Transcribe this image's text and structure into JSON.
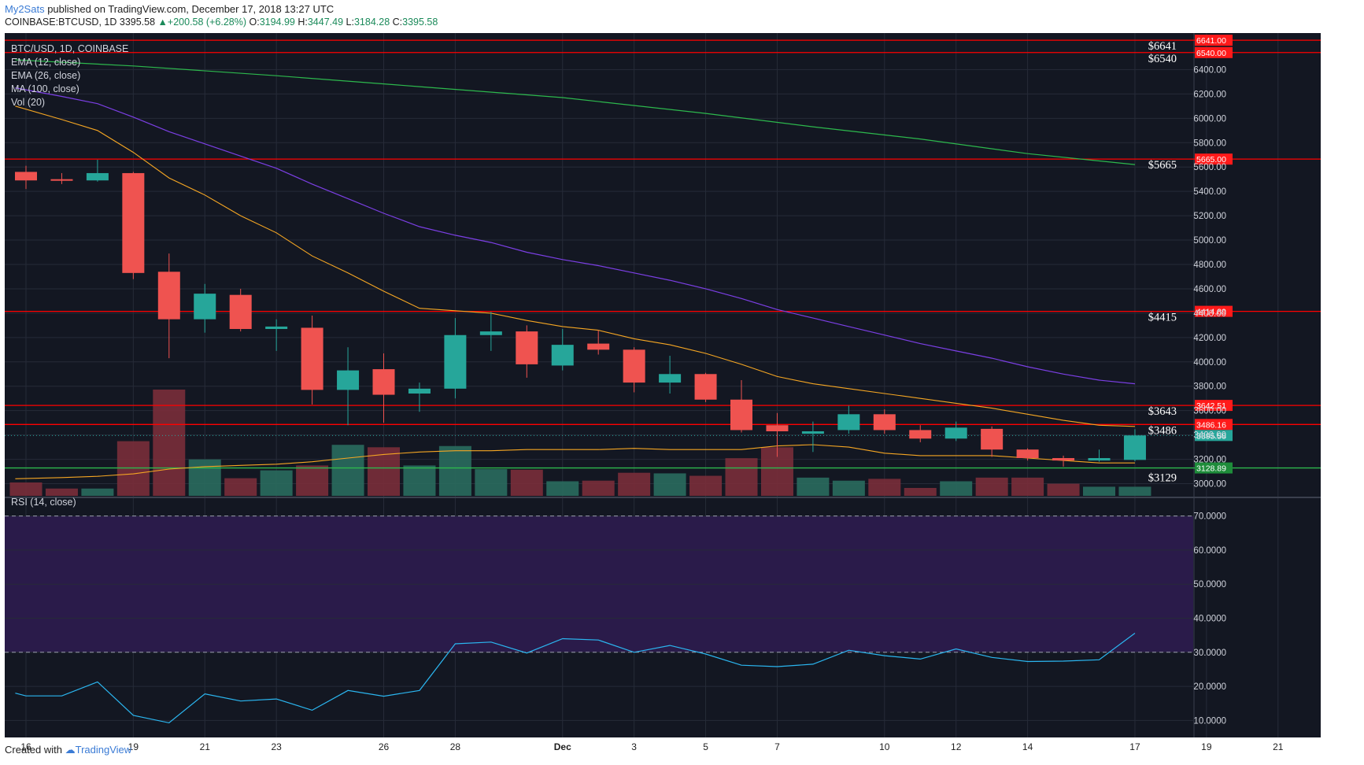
{
  "header": {
    "author": "My2Sats",
    "published": " published on TradingView.com, December 17, 2018 13:27 UTC",
    "symbol_line": "COINBASE:BTCUSD, 1D",
    "last": "3395.58",
    "change": "+200.58 (+6.28%)",
    "o_label": "O:",
    "o": "3194.99",
    "h_label": "H:",
    "h": "3447.49",
    "l_label": "L:",
    "l": "3184.28",
    "c_label": "C:",
    "c": "3395.58"
  },
  "footer": {
    "created": "Created with",
    "brand": "TradingView"
  },
  "colors": {
    "bg": "#131722",
    "up": "#26a69a",
    "down": "#ef5350",
    "ema12": "#f5a623",
    "ema26": "#f5a623",
    "ma100": "#7b3fe4",
    "green_ma": "#2db84d",
    "level": "#ff0000",
    "rsi": "#2bb6f0",
    "rsi_band": "#2a1b4a"
  },
  "chart_data": {
    "type": "candlestick",
    "symbol": "BTC/USD, 1D, COINBASE",
    "legend": [
      "EMA (12, close)",
      "EMA (26, close)",
      "MA (100, close)",
      "Vol (20)"
    ],
    "rsi_label": "RSI (14, close)",
    "ylim": [
      2900,
      6700
    ],
    "yticks": [
      "6400.00",
      "6200.00",
      "6000.00",
      "5800.00",
      "5600.00",
      "5400.00",
      "5200.00",
      "5000.00",
      "4800.00",
      "4600.00",
      "4400.00",
      "4200.00",
      "4000.00",
      "3800.00",
      "3600.00",
      "3400.00",
      "3200.00",
      "3000.00"
    ],
    "ytick_values": [
      6400,
      6200,
      6000,
      5800,
      5600,
      5400,
      5200,
      5000,
      4800,
      4600,
      4400,
      4200,
      4000,
      3800,
      3600,
      3400,
      3200,
      3000
    ],
    "x_ticks": [
      {
        "i": 0,
        "label": "16"
      },
      {
        "i": 3,
        "label": "19"
      },
      {
        "i": 5,
        "label": "21"
      },
      {
        "i": 7,
        "label": "23"
      },
      {
        "i": 10,
        "label": "26"
      },
      {
        "i": 12,
        "label": "28"
      },
      {
        "i": 15,
        "label": "Dec"
      },
      {
        "i": 17,
        "label": "3"
      },
      {
        "i": 19,
        "label": "5"
      },
      {
        "i": 21,
        "label": "7"
      },
      {
        "i": 24,
        "label": "10"
      },
      {
        "i": 26,
        "label": "12"
      },
      {
        "i": 28,
        "label": "14"
      },
      {
        "i": 31,
        "label": "17"
      },
      {
        "i": 33,
        "label": "19"
      },
      {
        "i": 35,
        "label": "21"
      }
    ],
    "candles": [
      {
        "o": 5560,
        "h": 5610,
        "l": 5420,
        "c": 5490
      },
      {
        "o": 5500,
        "h": 5550,
        "l": 5460,
        "c": 5490
      },
      {
        "o": 5490,
        "h": 5660,
        "l": 5480,
        "c": 5550
      },
      {
        "o": 5550,
        "h": 5560,
        "l": 4680,
        "c": 4730
      },
      {
        "o": 4740,
        "h": 4890,
        "l": 4030,
        "c": 4350
      },
      {
        "o": 4350,
        "h": 4640,
        "l": 4240,
        "c": 4560
      },
      {
        "o": 4550,
        "h": 4600,
        "l": 4250,
        "c": 4270
      },
      {
        "o": 4270,
        "h": 4350,
        "l": 4090,
        "c": 4290
      },
      {
        "o": 4280,
        "h": 4380,
        "l": 3650,
        "c": 3770
      },
      {
        "o": 3770,
        "h": 4120,
        "l": 3480,
        "c": 3930
      },
      {
        "o": 3940,
        "h": 4070,
        "l": 3500,
        "c": 3730
      },
      {
        "o": 3740,
        "h": 3830,
        "l": 3590,
        "c": 3780
      },
      {
        "o": 3780,
        "h": 4360,
        "l": 3700,
        "c": 4220
      },
      {
        "o": 4220,
        "h": 4410,
        "l": 4090,
        "c": 4250
      },
      {
        "o": 4250,
        "h": 4300,
        "l": 3870,
        "c": 3980
      },
      {
        "o": 3970,
        "h": 4270,
        "l": 3930,
        "c": 4140
      },
      {
        "o": 4150,
        "h": 4260,
        "l": 4060,
        "c": 4100
      },
      {
        "o": 4100,
        "h": 4120,
        "l": 3750,
        "c": 3830
      },
      {
        "o": 3830,
        "h": 4050,
        "l": 3740,
        "c": 3900
      },
      {
        "o": 3900,
        "h": 3910,
        "l": 3670,
        "c": 3690
      },
      {
        "o": 3690,
        "h": 3850,
        "l": 3420,
        "c": 3440
      },
      {
        "o": 3480,
        "h": 3580,
        "l": 3220,
        "c": 3430
      },
      {
        "o": 3410,
        "h": 3510,
        "l": 3260,
        "c": 3430
      },
      {
        "o": 3440,
        "h": 3640,
        "l": 3410,
        "c": 3570
      },
      {
        "o": 3570,
        "h": 3610,
        "l": 3410,
        "c": 3440
      },
      {
        "o": 3440,
        "h": 3480,
        "l": 3340,
        "c": 3370
      },
      {
        "o": 3370,
        "h": 3510,
        "l": 3350,
        "c": 3460
      },
      {
        "o": 3450,
        "h": 3470,
        "l": 3220,
        "c": 3280
      },
      {
        "o": 3280,
        "h": 3290,
        "l": 3190,
        "c": 3210
      },
      {
        "o": 3210,
        "h": 3230,
        "l": 3140,
        "c": 3190
      },
      {
        "o": 3190,
        "h": 3280,
        "l": 3180,
        "c": 3210
      },
      {
        "o": 3195,
        "h": 3447,
        "l": 3184,
        "c": 3396
      }
    ],
    "volume": [
      {
        "v": 0.22,
        "dir": "down"
      },
      {
        "v": 0.12,
        "dir": "down"
      },
      {
        "v": 0.12,
        "dir": "up"
      },
      {
        "v": 0.9,
        "dir": "down"
      },
      {
        "v": 1.75,
        "dir": "down"
      },
      {
        "v": 0.6,
        "dir": "up"
      },
      {
        "v": 0.29,
        "dir": "down"
      },
      {
        "v": 0.42,
        "dir": "up"
      },
      {
        "v": 0.5,
        "dir": "down"
      },
      {
        "v": 0.84,
        "dir": "up"
      },
      {
        "v": 0.8,
        "dir": "down"
      },
      {
        "v": 0.5,
        "dir": "up"
      },
      {
        "v": 0.82,
        "dir": "up"
      },
      {
        "v": 0.44,
        "dir": "up"
      },
      {
        "v": 0.43,
        "dir": "down"
      },
      {
        "v": 0.24,
        "dir": "up"
      },
      {
        "v": 0.25,
        "dir": "down"
      },
      {
        "v": 0.38,
        "dir": "down"
      },
      {
        "v": 0.37,
        "dir": "up"
      },
      {
        "v": 0.33,
        "dir": "down"
      },
      {
        "v": 0.62,
        "dir": "down"
      },
      {
        "v": 0.8,
        "dir": "down"
      },
      {
        "v": 0.3,
        "dir": "up"
      },
      {
        "v": 0.25,
        "dir": "up"
      },
      {
        "v": 0.28,
        "dir": "down"
      },
      {
        "v": 0.13,
        "dir": "down"
      },
      {
        "v": 0.24,
        "dir": "up"
      },
      {
        "v": 0.3,
        "dir": "down"
      },
      {
        "v": 0.3,
        "dir": "down"
      },
      {
        "v": 0.2,
        "dir": "down"
      },
      {
        "v": 0.15,
        "dir": "up"
      },
      {
        "v": 0.15,
        "dir": "up"
      }
    ],
    "ema12": [
      {
        "i": -0.3,
        "v": 6100
      },
      {
        "i": 1,
        "v": 5990
      },
      {
        "i": 2,
        "v": 5900
      },
      {
        "i": 3,
        "v": 5720
      },
      {
        "i": 4,
        "v": 5510
      },
      {
        "i": 5,
        "v": 5370
      },
      {
        "i": 6,
        "v": 5200
      },
      {
        "i": 7,
        "v": 5060
      },
      {
        "i": 8,
        "v": 4870
      },
      {
        "i": 9,
        "v": 4730
      },
      {
        "i": 10,
        "v": 4580
      },
      {
        "i": 11,
        "v": 4440
      },
      {
        "i": 12,
        "v": 4420
      },
      {
        "i": 13,
        "v": 4400
      },
      {
        "i": 14,
        "v": 4340
      },
      {
        "i": 15,
        "v": 4290
      },
      {
        "i": 16,
        "v": 4260
      },
      {
        "i": 17,
        "v": 4190
      },
      {
        "i": 18,
        "v": 4140
      },
      {
        "i": 19,
        "v": 4070
      },
      {
        "i": 20,
        "v": 3980
      },
      {
        "i": 21,
        "v": 3880
      },
      {
        "i": 22,
        "v": 3820
      },
      {
        "i": 23,
        "v": 3780
      },
      {
        "i": 24,
        "v": 3740
      },
      {
        "i": 25,
        "v": 3700
      },
      {
        "i": 26,
        "v": 3660
      },
      {
        "i": 27,
        "v": 3620
      },
      {
        "i": 28,
        "v": 3570
      },
      {
        "i": 29,
        "v": 3520
      },
      {
        "i": 30,
        "v": 3480
      },
      {
        "i": 31,
        "v": 3470
      }
    ],
    "ema26": [
      {
        "i": -0.3,
        "v": 3040
      },
      {
        "i": 1,
        "v": 3050
      },
      {
        "i": 2,
        "v": 3060
      },
      {
        "i": 3,
        "v": 3080
      },
      {
        "i": 4,
        "v": 3120
      },
      {
        "i": 5,
        "v": 3140
      },
      {
        "i": 6,
        "v": 3150
      },
      {
        "i": 7,
        "v": 3160
      },
      {
        "i": 8,
        "v": 3180
      },
      {
        "i": 9,
        "v": 3210
      },
      {
        "i": 10,
        "v": 3240
      },
      {
        "i": 11,
        "v": 3260
      },
      {
        "i": 12,
        "v": 3270
      },
      {
        "i": 13,
        "v": 3270
      },
      {
        "i": 14,
        "v": 3280
      },
      {
        "i": 15,
        "v": 3280
      },
      {
        "i": 16,
        "v": 3280
      },
      {
        "i": 17,
        "v": 3290
      },
      {
        "i": 18,
        "v": 3280
      },
      {
        "i": 19,
        "v": 3280
      },
      {
        "i": 20,
        "v": 3280
      },
      {
        "i": 21,
        "v": 3310
      },
      {
        "i": 22,
        "v": 3320
      },
      {
        "i": 23,
        "v": 3300
      },
      {
        "i": 24,
        "v": 3250
      },
      {
        "i": 25,
        "v": 3230
      },
      {
        "i": 26,
        "v": 3230
      },
      {
        "i": 27,
        "v": 3230
      },
      {
        "i": 28,
        "v": 3210
      },
      {
        "i": 29,
        "v": 3190
      },
      {
        "i": 30,
        "v": 3170
      },
      {
        "i": 31,
        "v": 3170
      }
    ],
    "ma100": [
      {
        "i": -0.3,
        "v": 6250
      },
      {
        "i": 1,
        "v": 6180
      },
      {
        "i": 2,
        "v": 6120
      },
      {
        "i": 3,
        "v": 6010
      },
      {
        "i": 4,
        "v": 5890
      },
      {
        "i": 5,
        "v": 5790
      },
      {
        "i": 6,
        "v": 5690
      },
      {
        "i": 7,
        "v": 5590
      },
      {
        "i": 8,
        "v": 5460
      },
      {
        "i": 9,
        "v": 5340
      },
      {
        "i": 10,
        "v": 5220
      },
      {
        "i": 11,
        "v": 5110
      },
      {
        "i": 12,
        "v": 5040
      },
      {
        "i": 13,
        "v": 4980
      },
      {
        "i": 14,
        "v": 4900
      },
      {
        "i": 15,
        "v": 4840
      },
      {
        "i": 16,
        "v": 4790
      },
      {
        "i": 17,
        "v": 4730
      },
      {
        "i": 18,
        "v": 4670
      },
      {
        "i": 19,
        "v": 4600
      },
      {
        "i": 20,
        "v": 4520
      },
      {
        "i": 21,
        "v": 4430
      },
      {
        "i": 22,
        "v": 4360
      },
      {
        "i": 23,
        "v": 4290
      },
      {
        "i": 24,
        "v": 4220
      },
      {
        "i": 25,
        "v": 4150
      },
      {
        "i": 26,
        "v": 4090
      },
      {
        "i": 27,
        "v": 4030
      },
      {
        "i": 28,
        "v": 3960
      },
      {
        "i": 29,
        "v": 3900
      },
      {
        "i": 30,
        "v": 3850
      },
      {
        "i": 31,
        "v": 3820
      }
    ],
    "green_ma": [
      {
        "i": -0.3,
        "v": 6480
      },
      {
        "i": 3,
        "v": 6430
      },
      {
        "i": 7,
        "v": 6350
      },
      {
        "i": 11,
        "v": 6260
      },
      {
        "i": 15,
        "v": 6170
      },
      {
        "i": 19,
        "v": 6040
      },
      {
        "i": 22,
        "v": 5930
      },
      {
        "i": 25,
        "v": 5830
      },
      {
        "i": 28,
        "v": 5710
      },
      {
        "i": 31,
        "v": 5620
      }
    ],
    "levels": [
      {
        "price": 6641,
        "label": "$6641",
        "tag": "6641.00"
      },
      {
        "price": 6540,
        "label": "$6540",
        "tag": "6540.00"
      },
      {
        "price": 5665,
        "label": "$5665",
        "tag": "5665.00"
      },
      {
        "price": 4414.89,
        "label": "$4415",
        "tag": "4414.89"
      },
      {
        "price": 3642.51,
        "label": "$3643",
        "tag": "3642.51"
      },
      {
        "price": 3486.16,
        "label": "$3486",
        "tag": "3486.16"
      }
    ],
    "support": {
      "price": 3128.89,
      "label": "$3129",
      "tag": "3128.89"
    },
    "last_price": {
      "price": 3395.58,
      "tag": "3395.58"
    },
    "rsi": {
      "ylim": [
        5,
        75
      ],
      "yticks": [
        "70.0000",
        "60.0000",
        "50.0000",
        "40.0000",
        "30.0000",
        "20.0000",
        "10.0000"
      ],
      "ytick_values": [
        70,
        60,
        50,
        40,
        30,
        20,
        10
      ],
      "overbought": 70,
      "oversold": 30,
      "values": [
        {
          "i": -0.3,
          "v": 18
        },
        {
          "i": 0,
          "v": 17.2
        },
        {
          "i": 1,
          "v": 17.2
        },
        {
          "i": 2,
          "v": 21.3
        },
        {
          "i": 3,
          "v": 11.5
        },
        {
          "i": 4,
          "v": 9.3
        },
        {
          "i": 5,
          "v": 17.8
        },
        {
          "i": 6,
          "v": 15.7
        },
        {
          "i": 7,
          "v": 16.3
        },
        {
          "i": 8,
          "v": 13
        },
        {
          "i": 9,
          "v": 18.8
        },
        {
          "i": 10,
          "v": 17.1
        },
        {
          "i": 11,
          "v": 18.8
        },
        {
          "i": 12,
          "v": 32.5
        },
        {
          "i": 13,
          "v": 33
        },
        {
          "i": 14,
          "v": 29.8
        },
        {
          "i": 15,
          "v": 34
        },
        {
          "i": 16,
          "v": 33.6
        },
        {
          "i": 17,
          "v": 30
        },
        {
          "i": 18,
          "v": 32
        },
        {
          "i": 19,
          "v": 29.5
        },
        {
          "i": 20,
          "v": 26.2
        },
        {
          "i": 21,
          "v": 25.8
        },
        {
          "i": 22,
          "v": 26.5
        },
        {
          "i": 23,
          "v": 30.6
        },
        {
          "i": 24,
          "v": 29
        },
        {
          "i": 25,
          "v": 28
        },
        {
          "i": 26,
          "v": 31
        },
        {
          "i": 27,
          "v": 28.5
        },
        {
          "i": 28,
          "v": 27.3
        },
        {
          "i": 29,
          "v": 27.4
        },
        {
          "i": 30,
          "v": 27.8
        },
        {
          "i": 31,
          "v": 35.6
        }
      ]
    }
  }
}
